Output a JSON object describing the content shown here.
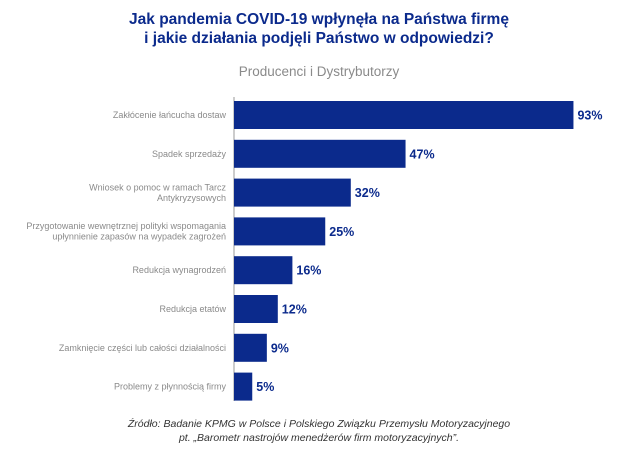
{
  "header": {
    "title_line1": "Jak pandemia COVID-19 wpłynęła na Państwa firmę",
    "title_line2": "i jakie działania podjęli Państwo w odpowiedzi?",
    "subtitle": "Producenci i Dystrybutorzy"
  },
  "footer": {
    "source_line1": "Źródło: Badanie KPMG w Polsce i Polskiego Związku Przemysłu Motoryzacyjnego",
    "source_line2": "pt. „Barometr nastrojów menedżerów firm motoryzacyjnych”."
  },
  "colors": {
    "bar": "#0b2a8c",
    "value_text": "#0b2a8c",
    "category_text": "#8a8a8a",
    "axis": "#9a9a9a",
    "title": "#0b2a8c"
  },
  "chart_data": {
    "type": "bar",
    "orientation": "horizontal",
    "title": "Jak pandemia COVID-19 wpłynęła na Państwa firmę i jakie działania podjęli Państwo w odpowiedzi?",
    "subtitle": "Producenci i Dystrybutorzy",
    "categories": [
      [
        "Zakłócenie łańcucha dostaw"
      ],
      [
        "Spadek sprzedaży"
      ],
      [
        "Wniosek o pomoc w ramach Tarcz",
        "Antykryzysowych"
      ],
      [
        "Przygotowanie wewnętrznej polityki wspomagania",
        "upłynnienie zapasów na wypadek zagrożeń"
      ],
      [
        "Redukcja wynagrodzeń"
      ],
      [
        "Redukcja etatów"
      ],
      [
        "Zamknięcie części lub całości działalności"
      ],
      [
        "Problemy z płynnością firmy"
      ]
    ],
    "values": [
      93,
      47,
      32,
      25,
      16,
      12,
      9,
      5
    ],
    "value_labels": [
      "93%",
      "47%",
      "32%",
      "25%",
      "16%",
      "12%",
      "9%",
      "5%"
    ],
    "xlim": [
      0,
      100
    ],
    "grid": false,
    "legend": "none"
  }
}
